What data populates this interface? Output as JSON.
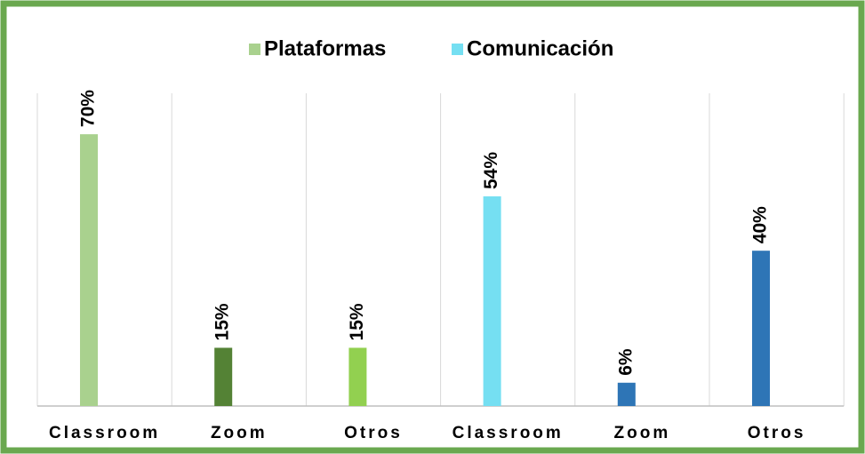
{
  "chart_data": {
    "type": "bar",
    "legend": [
      {
        "name": "Plataformas",
        "color": "#a9d18e"
      },
      {
        "name": "Comunicación",
        "color": "#75dff2"
      }
    ],
    "categories": [
      "Classroom",
      "Zoom",
      "Otros",
      "Classroom",
      "Zoom",
      "Otros"
    ],
    "values": [
      70,
      15,
      15,
      54,
      6,
      40
    ],
    "value_labels": [
      "70%",
      "15%",
      "15%",
      "54%",
      "6%",
      "40%"
    ],
    "colors": [
      "#a9d18e",
      "#548235",
      "#92d050",
      "#75dff2",
      "#2e75b6",
      "#2e75b6"
    ]
  }
}
